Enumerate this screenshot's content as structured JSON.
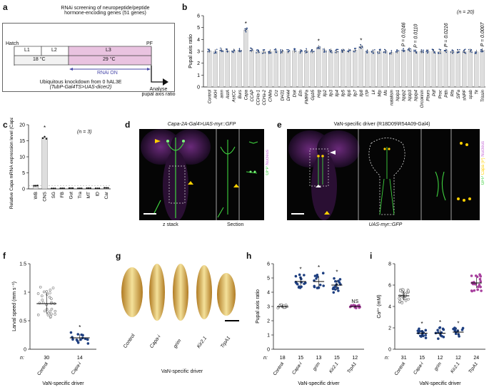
{
  "panels": {
    "a": {
      "label": "a",
      "title_line1": "RNAi screening of neuropeptide/peptide",
      "title_line2": "hormone-encoding genes (51 genes)",
      "stages": [
        "L1",
        "L2",
        "L3"
      ],
      "hatch": "Hatch",
      "pf": "PF",
      "temp_left": "18 °C",
      "temp_right": "29 °C",
      "rnai_on": "RNAi ON",
      "knockdown_line1": "Ubiquitous knockdown from 0 hAL3E",
      "knockdown_line2": "(TubP-Gal4TS>UAS-dicer2)",
      "analyse_line1": "Analyse",
      "analyse_line2": "pupal axis ratio",
      "colors": {
        "box_left": "#f2f2f2",
        "box_right": "#e9c3e0",
        "arrow": "#4a4aaa"
      }
    },
    "b": {
      "label": "b",
      "n_note": "(n = 20)",
      "p_values": [
        "P = 0.0246",
        "P = 0.0110",
        "P = 0.0216",
        "P = 0.0007"
      ],
      "star": "*"
    },
    "c": {
      "label": "c",
      "n_note": "(n = 3)",
      "star": "*"
    },
    "d": {
      "label": "d",
      "title": "Capa-2A-Gal4>UAS-myr::GFP",
      "z_stack": "z stack",
      "section": "Section",
      "legend_gfp": "GFP",
      "legend_nucleus": "Nucleus"
    },
    "e": {
      "label": "e",
      "title": "VaN-specific driver (R18D09\\R54A09-Gal4)",
      "subtitle": "UAS-myr::GFP",
      "legend_gfp": "GFP",
      "legend_capa": "Capa (P)",
      "legend_nucleus": "Nucleus"
    },
    "f": {
      "label": "f",
      "xlabel": "VaN-specific driver"
    },
    "g": {
      "label": "g",
      "larvae": [
        "Control",
        "Capa-i",
        "grim",
        "Kir2.1",
        "TrpA1"
      ],
      "xlabel": "VaN-specific driver"
    },
    "h": {
      "label": "h",
      "xlabel": "VaN-specific driver"
    },
    "i": {
      "label": "i",
      "xlabel": "VaN-specific driver"
    }
  },
  "chart_data": [
    {
      "id": "b",
      "type": "bar",
      "title": "",
      "xlabel": "",
      "ylabel": "Pupal axis ratio",
      "ylim": [
        0,
        6
      ],
      "yticks": [
        0,
        1,
        2,
        3,
        4,
        5,
        6
      ],
      "categories": [
        "Control",
        "AKH",
        "amn",
        "AstA",
        "AstCC",
        "Burs",
        "Capa",
        "CCAP",
        "CCHa-1",
        "CCHa-2",
        "CNMa",
        "Crz",
        "DH31",
        "DH44",
        "Dsk",
        "Eth",
        "FMRFa",
        "Gpb5",
        "Hug",
        "Ilp2",
        "Ilp3",
        "Ilp4",
        "Ilp5",
        "Ilp6",
        "Ilp7",
        "Ilp8",
        "ITP",
        "Lk",
        "Mip",
        "Ms",
        "natalisin",
        "Nplp1",
        "Nplp2",
        "Nplp3",
        "Nplp4",
        "Orcokinin",
        "Pburs",
        "Pdf",
        "Proc",
        "Ptth",
        "Rfa",
        "SIFa",
        "sNPF",
        "spab",
        "Tk",
        "Trissin"
      ],
      "values": [
        3.05,
        3.0,
        3.1,
        3.05,
        3.05,
        3.1,
        4.8,
        3.1,
        3.0,
        3.0,
        3.0,
        3.05,
        3.0,
        3.0,
        3.05,
        3.0,
        3.05,
        3.0,
        3.35,
        3.1,
        3.05,
        3.0,
        3.05,
        3.05,
        3.1,
        3.4,
        3.0,
        3.0,
        3.0,
        3.0,
        2.9,
        3.0,
        3.1,
        3.15,
        3.0,
        3.0,
        3.0,
        3.0,
        3.0,
        3.05,
        3.0,
        3.0,
        3.0,
        3.05,
        2.95,
        3.1
      ],
      "significant_star": [
        "Capa",
        "Hug",
        "Ilp8"
      ],
      "p_value_labels": {
        "Nplp2": "P = 0.0246",
        "Nplp4": "P = 0.0110",
        "Ptth": "P = 0.0216",
        "Trissin": "P = 0.0007"
      }
    },
    {
      "id": "c",
      "type": "bar",
      "title": "",
      "ylabel": "Relative Capa mRNA expression level (Capa/rp49)",
      "ylim": [
        0,
        20
      ],
      "yticks": [
        0,
        5,
        10,
        15,
        20
      ],
      "categories": [
        "WB",
        "CNS",
        "SG",
        "FB",
        "Gut",
        "Tra",
        "MT",
        "ID",
        "Car"
      ],
      "values": [
        1.0,
        16.0,
        0.12,
        0.15,
        0.2,
        0.15,
        0.2,
        0.15,
        0.3
      ],
      "significant_star": [
        "CNS"
      ],
      "dashed_reference": 1
    },
    {
      "id": "f",
      "type": "scatter",
      "ylabel": "Larval speed (mm s⁻¹)",
      "ylim": [
        0,
        1.5
      ],
      "yticks": [
        0,
        0.5,
        1.0,
        1.5
      ],
      "categories": [
        "Control",
        "Capa-i"
      ],
      "n_label": "n:",
      "n": [
        30,
        14
      ],
      "medians": [
        0.8,
        0.2
      ],
      "significant_star": [
        "Capa-i"
      ],
      "xlabel": "VaN-specific driver"
    },
    {
      "id": "h",
      "type": "scatter",
      "ylabel": "Pupal axis ratio",
      "ylim": [
        0,
        6
      ],
      "yticks": [
        0,
        1,
        2,
        3,
        4,
        5,
        6
      ],
      "categories": [
        "Control",
        "Capa-i",
        "grim",
        "Kir2.1",
        "TrpA1"
      ],
      "n_label": "n:",
      "n": [
        18,
        15,
        13,
        15,
        12
      ],
      "medians": [
        3.0,
        4.75,
        4.75,
        4.5,
        3.0
      ],
      "annotations": [
        "",
        "*",
        "*",
        "*",
        "NS"
      ],
      "xlabel": "VaN-specific driver"
    },
    {
      "id": "i",
      "type": "scatter",
      "ylabel": "Ca²⁺ (mM)",
      "ylim": [
        0,
        8
      ],
      "yticks": [
        0,
        2,
        4,
        6,
        8
      ],
      "categories": [
        "Control",
        "Capa-i",
        "grim",
        "Kir2.1",
        "TrpA1"
      ],
      "n_label": "n:",
      "n": [
        31,
        15,
        12,
        12,
        24
      ],
      "medians": [
        5.0,
        1.5,
        1.5,
        1.6,
        6.2
      ],
      "annotations": [
        "",
        "*",
        "*",
        "*",
        ""
      ],
      "xlabel": "VaN-specific driver"
    }
  ]
}
